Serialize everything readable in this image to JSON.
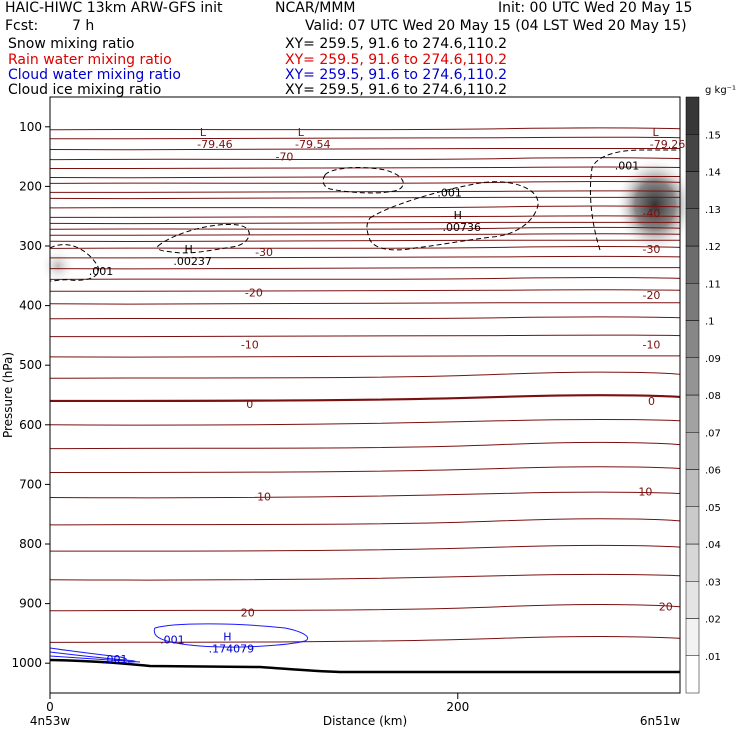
{
  "header": {
    "model": "HAIC-HIWC 13km ARW-GFS init",
    "org": "NCAR/MMM",
    "init": "Init: 00 UTC Wed 20 May 15",
    "fcst_label": "Fcst:",
    "fcst_value": "7 h",
    "valid": "Valid: 07 UTC Wed 20 May 15 (04 LST Wed 20 May 15)",
    "fields": [
      {
        "name": "Snow mixing ratio",
        "xy": "XY= 259.5, 91.6 to 274.6,110.2",
        "color": "#000000"
      },
      {
        "name": "Rain water mixing ratio",
        "xy": "XY= 259.5, 91.6 to 274.6,110.2",
        "color": "#dd0000"
      },
      {
        "name": "Cloud water mixing ratio",
        "xy": "XY= 259.5, 91.6 to 274.6,110.2",
        "color": "#0000cc"
      },
      {
        "name": "Cloud ice mixing ratio",
        "xy": "XY= 259.5, 91.6 to 274.6,110.2",
        "color": "#000000"
      }
    ]
  },
  "chart_data": {
    "type": "contour",
    "xlabel": "Distance (km)",
    "ylabel": "Pressure (hPa)",
    "xlim": [
      0,
      309
    ],
    "ylim": [
      1050,
      50
    ],
    "x_ticks": [
      0,
      200
    ],
    "y_ticks": [
      100,
      200,
      300,
      400,
      500,
      600,
      700,
      800,
      900,
      1000
    ],
    "x_endpoints": {
      "left": "4n53w",
      "right": "6n51w"
    },
    "colorbar": {
      "unit": "g kg⁻¹",
      "levels": [
        ".01",
        ".02",
        ".03",
        ".04",
        ".05",
        ".06",
        ".07",
        ".08",
        ".09",
        ".1",
        ".11",
        ".12",
        ".13",
        ".14",
        ".15"
      ]
    },
    "temperature_labels": [
      {
        "text": "-70",
        "x": 115,
        "p": 150
      },
      {
        "text": "-30",
        "x": 105,
        "p": 310
      },
      {
        "text": "-20",
        "x": 100,
        "p": 378
      },
      {
        "text": "-10",
        "x": 98,
        "p": 465
      },
      {
        "text": "0",
        "x": 98,
        "p": 565
      },
      {
        "text": "10",
        "x": 105,
        "p": 720
      },
      {
        "text": "20",
        "x": 97,
        "p": 915
      },
      {
        "text": "-40",
        "x": 295,
        "p": 245
      },
      {
        "text": "-30",
        "x": 295,
        "p": 305
      },
      {
        "text": "-20",
        "x": 295,
        "p": 382
      },
      {
        "text": "-10",
        "x": 295,
        "p": 465
      },
      {
        "text": "0",
        "x": 295,
        "p": 560
      },
      {
        "text": "10",
        "x": 292,
        "p": 712
      },
      {
        "text": "20",
        "x": 302,
        "p": 905
      }
    ],
    "minima": [
      {
        "mark": "L",
        "value": "-79.46",
        "x": 75,
        "p": 85
      },
      {
        "mark": "L",
        "value": "-79.54",
        "x": 123,
        "p": 85
      },
      {
        "mark": "L",
        "value": "-79.26",
        "x": 297,
        "p": 85
      }
    ],
    "maxima": [
      {
        "mark": "H",
        "value": ".00237",
        "x": 68,
        "p": 315
      },
      {
        "mark": "H",
        "value": ".00736",
        "x": 200,
        "p": 258
      },
      {
        "mark": "H",
        "value": ".174079",
        "x": 87,
        "p": 965
      }
    ],
    "contour_labels": [
      {
        "text": ".001",
        "x": 25,
        "p": 342,
        "color": "#000000"
      },
      {
        "text": ".001",
        "x": 196,
        "p": 210,
        "color": "#000000"
      },
      {
        "text": ".001",
        "x": 283,
        "p": 165,
        "color": "#000000"
      },
      {
        "text": ".001",
        "x": 60,
        "p": 960,
        "color": "#0000cc"
      },
      {
        "text": ".001",
        "x": 32,
        "p": 993,
        "color": "#0000cc"
      }
    ]
  }
}
